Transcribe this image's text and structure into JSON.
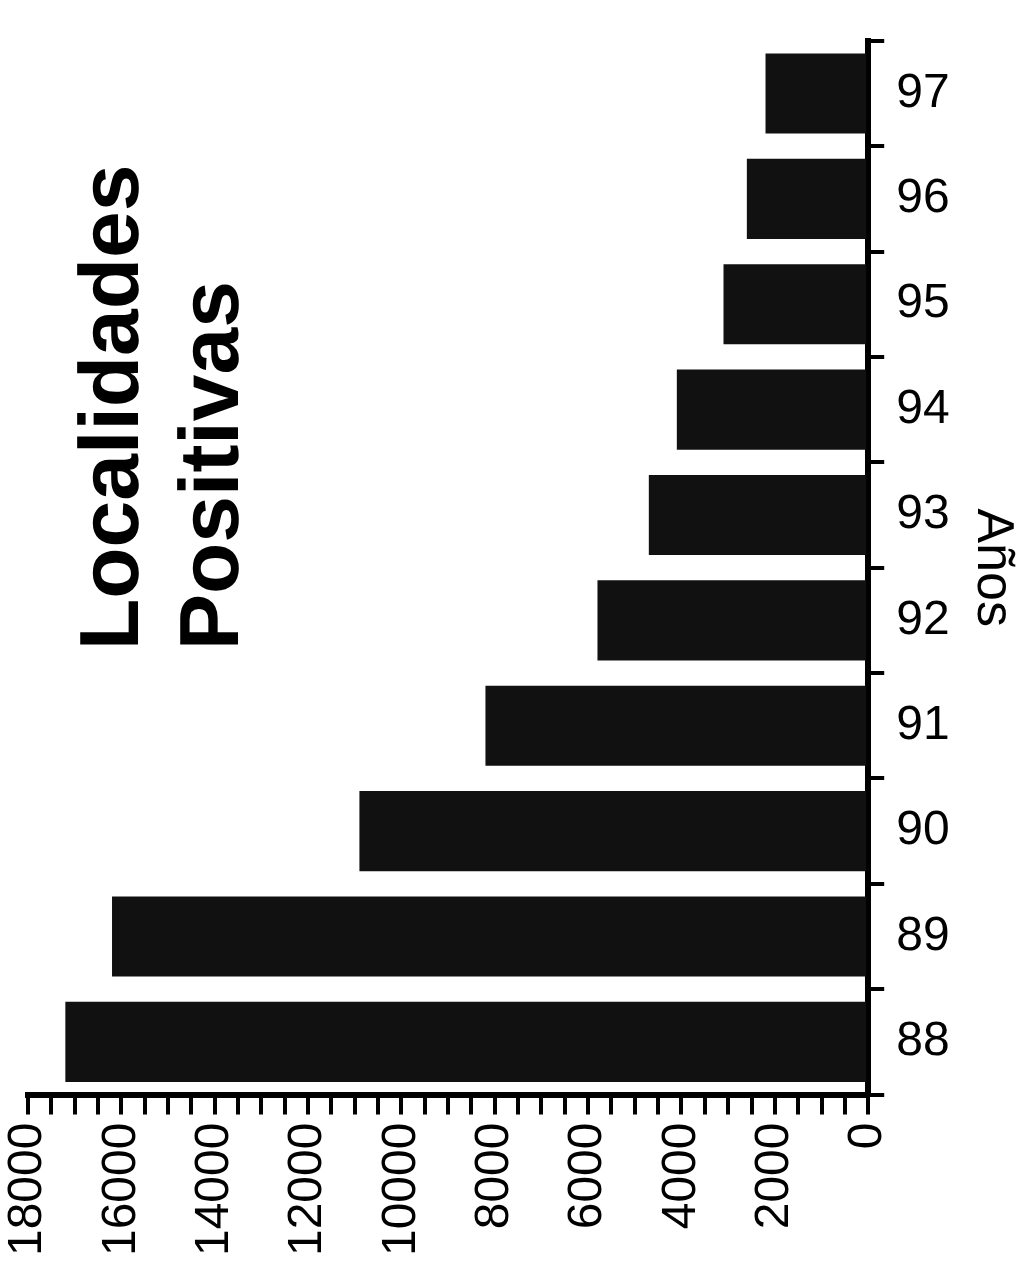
{
  "chart_data": {
    "type": "bar",
    "orientation": "horizontal",
    "title": "Localidades Positivas",
    "ylabel": "Años",
    "categories": [
      "97",
      "96",
      "95",
      "94",
      "93",
      "92",
      "91",
      "90",
      "89",
      "88"
    ],
    "values": [
      2200,
      2600,
      3100,
      4100,
      4700,
      5800,
      8200,
      10900,
      16200,
      17200
    ],
    "color": "#111111",
    "xlim": [
      18000,
      0
    ],
    "xticks": [
      18000,
      {
        "value": 17500,
        "label": null
      },
      {
        "value": 17000,
        "label": null
      },
      {
        "value": 16500,
        "label": null
      },
      16000,
      {
        "value": 15500,
        "label": null
      },
      {
        "value": 15000,
        "label": null
      },
      {
        "value": 14500,
        "label": null
      },
      14000,
      {
        "value": 13500,
        "label": null
      },
      {
        "value": 13000,
        "label": null
      },
      {
        "value": 12500,
        "label": null
      },
      12000,
      {
        "value": 11500,
        "label": null
      },
      {
        "value": 11000,
        "label": null
      },
      {
        "value": 10500,
        "label": null
      },
      10000,
      {
        "value": 9500,
        "label": null
      },
      {
        "value": 9000,
        "label": null
      },
      {
        "value": 8500,
        "label": null
      },
      8000,
      {
        "value": 7500,
        "label": null
      },
      {
        "value": 7000,
        "label": null
      },
      {
        "value": 6500,
        "label": null
      },
      6000,
      {
        "value": 5500,
        "label": null
      },
      {
        "value": 5000,
        "label": null
      },
      {
        "value": 4500,
        "label": null
      },
      4000,
      {
        "value": 3500,
        "label": null
      },
      {
        "value": 3000,
        "label": null
      },
      {
        "value": 2500,
        "label": null
      },
      2000,
      {
        "value": 1500,
        "label": null
      },
      {
        "value": 1000,
        "label": null
      },
      {
        "value": 500,
        "label": null
      },
      0
    ],
    "grid": false,
    "legend": false
  }
}
